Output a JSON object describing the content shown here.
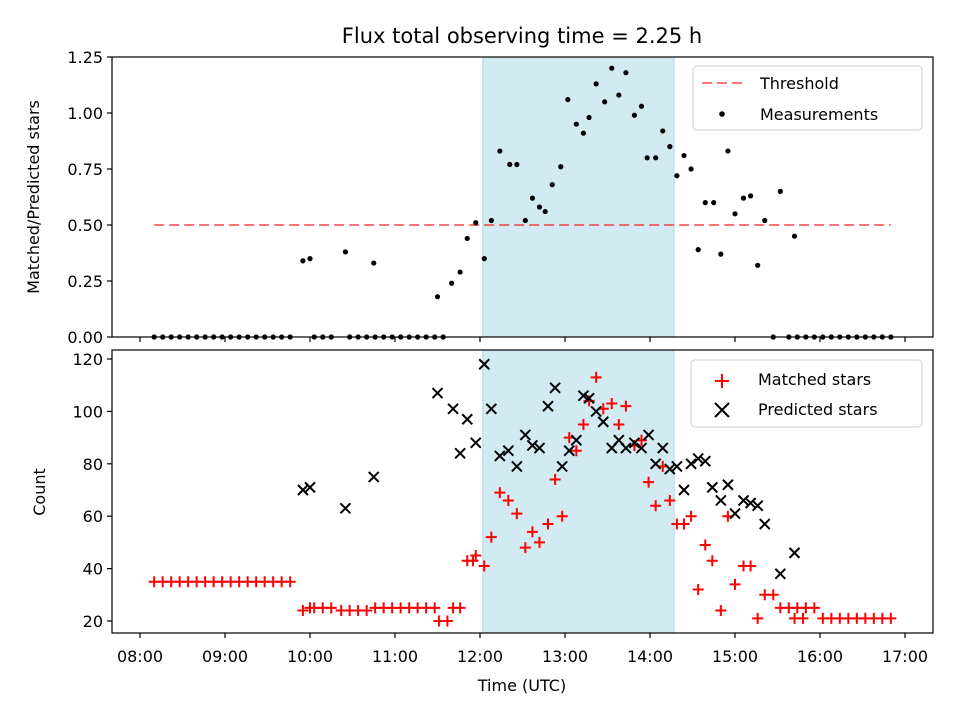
{
  "chart_data": [
    {
      "type": "scatter",
      "title": "Flux total observing time = 2.25 h",
      "xlabel": "",
      "ylabel": "Matched/Predicted stars",
      "xlim": [
        "08:00",
        "17:30"
      ],
      "ylim": [
        0,
        1.25
      ],
      "yticks": [
        0.0,
        0.25,
        0.5,
        0.75,
        1.0,
        1.25
      ],
      "ytick_labels": [
        "0.00",
        "0.25",
        "0.50",
        "0.75",
        "1.00",
        "1.25"
      ],
      "shaded_region": {
        "start": "12:02",
        "end": "14:17",
        "color": "#add8e6"
      },
      "grid": false,
      "legend_position": "top-right",
      "threshold": {
        "name": "Threshold",
        "value": 0.5,
        "x": [
          "08:10",
          "16:50"
        ],
        "color": "#ff0000",
        "style": "dashed"
      },
      "series": [
        {
          "name": "Measurements",
          "marker": "dot",
          "color": "#000000",
          "points": [
            [
              "08:10",
              0
            ],
            [
              "08:16",
              0
            ],
            [
              "08:22",
              0
            ],
            [
              "08:28",
              0
            ],
            [
              "08:34",
              0
            ],
            [
              "08:40",
              0
            ],
            [
              "08:46",
              0
            ],
            [
              "08:52",
              0
            ],
            [
              "08:58",
              0
            ],
            [
              "09:04",
              0
            ],
            [
              "09:10",
              0
            ],
            [
              "09:16",
              0
            ],
            [
              "09:22",
              0
            ],
            [
              "09:28",
              0
            ],
            [
              "09:34",
              0
            ],
            [
              "09:40",
              0
            ],
            [
              "09:46",
              0
            ],
            [
              "09:55",
              0.34
            ],
            [
              "10:00",
              0.35
            ],
            [
              "10:03",
              0
            ],
            [
              "10:09",
              0
            ],
            [
              "10:15",
              0
            ],
            [
              "10:25",
              0.38
            ],
            [
              "10:28",
              0
            ],
            [
              "10:34",
              0
            ],
            [
              "10:40",
              0
            ],
            [
              "10:46",
              0
            ],
            [
              "10:45",
              0.33
            ],
            [
              "10:52",
              0
            ],
            [
              "10:58",
              0
            ],
            [
              "11:04",
              0
            ],
            [
              "11:10",
              0
            ],
            [
              "11:16",
              0
            ],
            [
              "11:22",
              0
            ],
            [
              "11:28",
              0
            ],
            [
              "11:34",
              0
            ],
            [
              "11:30",
              0.18
            ],
            [
              "11:40",
              0.24
            ],
            [
              "11:46",
              0.29
            ],
            [
              "11:51",
              0.44
            ],
            [
              "11:57",
              0.51
            ],
            [
              "12:03",
              0.35
            ],
            [
              "12:08",
              0.52
            ],
            [
              "12:14",
              0.83
            ],
            [
              "12:21",
              0.77
            ],
            [
              "12:26",
              0.77
            ],
            [
              "12:32",
              0.52
            ],
            [
              "12:37",
              0.62
            ],
            [
              "12:42",
              0.58
            ],
            [
              "12:46",
              0.56
            ],
            [
              "12:51",
              0.68
            ],
            [
              "12:57",
              0.76
            ],
            [
              "13:02",
              1.06
            ],
            [
              "13:08",
              0.95
            ],
            [
              "13:13",
              0.91
            ],
            [
              "13:17",
              0.98
            ],
            [
              "13:22",
              1.13
            ],
            [
              "13:28",
              1.05
            ],
            [
              "13:33",
              1.2
            ],
            [
              "13:38",
              1.08
            ],
            [
              "13:43",
              1.18
            ],
            [
              "13:49",
              0.99
            ],
            [
              "13:54",
              1.03
            ],
            [
              "13:58",
              0.8
            ],
            [
              "14:04",
              0.8
            ],
            [
              "14:09",
              0.92
            ],
            [
              "14:14",
              0.85
            ],
            [
              "14:19",
              0.72
            ],
            [
              "14:24",
              0.81
            ],
            [
              "14:29",
              0.75
            ],
            [
              "14:34",
              0.39
            ],
            [
              "14:39",
              0.6
            ],
            [
              "14:45",
              0.6
            ],
            [
              "14:50",
              0.37
            ],
            [
              "14:55",
              0.83
            ],
            [
              "15:00",
              0.55
            ],
            [
              "15:06",
              0.62
            ],
            [
              "15:11",
              0.63
            ],
            [
              "15:16",
              0.32
            ],
            [
              "15:21",
              0.52
            ],
            [
              "15:27",
              0
            ],
            [
              "15:32",
              0.65
            ],
            [
              "15:38",
              0
            ],
            [
              "15:44",
              0
            ],
            [
              "15:50",
              0
            ],
            [
              "15:56",
              0
            ],
            [
              "16:02",
              0
            ],
            [
              "16:08",
              0
            ],
            [
              "16:14",
              0
            ],
            [
              "16:20",
              0
            ],
            [
              "16:26",
              0
            ],
            [
              "16:32",
              0
            ],
            [
              "16:38",
              0
            ],
            [
              "16:44",
              0
            ],
            [
              "16:50",
              0
            ],
            [
              "15:42",
              0.45
            ]
          ]
        }
      ]
    },
    {
      "type": "scatter",
      "title": "",
      "xlabel": "Time (UTC)",
      "ylabel": "Count",
      "xlim": [
        "08:00",
        "17:30"
      ],
      "ylim": [
        15,
        123
      ],
      "yticks": [
        20,
        40,
        60,
        80,
        100,
        120
      ],
      "xticks": [
        "08:00",
        "09:00",
        "10:00",
        "11:00",
        "12:00",
        "13:00",
        "14:00",
        "15:00",
        "16:00",
        "17:00"
      ],
      "shaded_region": {
        "start": "12:02",
        "end": "14:17",
        "color": "#add8e6"
      },
      "grid": false,
      "legend_position": "top-right",
      "series": [
        {
          "name": "Matched stars",
          "marker": "plus",
          "color": "#ff0000",
          "points": [
            [
              "08:10",
              35
            ],
            [
              "08:16",
              35
            ],
            [
              "08:22",
              35
            ],
            [
              "08:28",
              35
            ],
            [
              "08:34",
              35
            ],
            [
              "08:40",
              35
            ],
            [
              "08:46",
              35
            ],
            [
              "08:52",
              35
            ],
            [
              "08:58",
              35
            ],
            [
              "09:04",
              35
            ],
            [
              "09:10",
              35
            ],
            [
              "09:16",
              35
            ],
            [
              "09:22",
              35
            ],
            [
              "09:28",
              35
            ],
            [
              "09:34",
              35
            ],
            [
              "09:40",
              35
            ],
            [
              "09:46",
              35
            ],
            [
              "09:55",
              24
            ],
            [
              "10:00",
              25
            ],
            [
              "10:03",
              25
            ],
            [
              "10:09",
              25
            ],
            [
              "10:15",
              25
            ],
            [
              "10:22",
              24
            ],
            [
              "10:28",
              24
            ],
            [
              "10:34",
              24
            ],
            [
              "10:40",
              24
            ],
            [
              "10:46",
              25
            ],
            [
              "10:52",
              25
            ],
            [
              "10:58",
              25
            ],
            [
              "11:04",
              25
            ],
            [
              "11:10",
              25
            ],
            [
              "11:16",
              25
            ],
            [
              "11:22",
              25
            ],
            [
              "11:28",
              25
            ],
            [
              "11:31",
              20
            ],
            [
              "11:37",
              20
            ],
            [
              "11:41",
              25
            ],
            [
              "11:46",
              25
            ],
            [
              "11:51",
              43
            ],
            [
              "11:55",
              43
            ],
            [
              "11:57",
              45
            ],
            [
              "12:03",
              41
            ],
            [
              "12:08",
              52
            ],
            [
              "12:14",
              69
            ],
            [
              "12:20",
              66
            ],
            [
              "12:26",
              61
            ],
            [
              "12:32",
              48
            ],
            [
              "12:37",
              54
            ],
            [
              "12:42",
              50
            ],
            [
              "12:48",
              57
            ],
            [
              "12:53",
              74
            ],
            [
              "12:58",
              60
            ],
            [
              "13:03",
              90
            ],
            [
              "13:08",
              85
            ],
            [
              "13:13",
              95
            ],
            [
              "13:17",
              104
            ],
            [
              "13:22",
              113
            ],
            [
              "13:27",
              101
            ],
            [
              "13:33",
              103
            ],
            [
              "13:38",
              95
            ],
            [
              "13:43",
              102
            ],
            [
              "13:49",
              87
            ],
            [
              "13:54",
              89
            ],
            [
              "13:59",
              73
            ],
            [
              "14:04",
              64
            ],
            [
              "14:09",
              79
            ],
            [
              "14:14",
              66
            ],
            [
              "14:19",
              57
            ],
            [
              "14:24",
              57
            ],
            [
              "14:29",
              60
            ],
            [
              "14:34",
              32
            ],
            [
              "14:39",
              49
            ],
            [
              "14:44",
              43
            ],
            [
              "14:50",
              24
            ],
            [
              "14:55",
              60
            ],
            [
              "15:00",
              34
            ],
            [
              "15:06",
              41
            ],
            [
              "15:11",
              41
            ],
            [
              "15:16",
              21
            ],
            [
              "15:21",
              30
            ],
            [
              "15:27",
              30
            ],
            [
              "15:32",
              25
            ],
            [
              "15:38",
              25
            ],
            [
              "15:44",
              25
            ],
            [
              "15:50",
              25
            ],
            [
              "15:56",
              25
            ],
            [
              "16:02",
              21
            ],
            [
              "16:08",
              21
            ],
            [
              "16:14",
              21
            ],
            [
              "16:20",
              21
            ],
            [
              "16:26",
              21
            ],
            [
              "16:32",
              21
            ],
            [
              "16:38",
              21
            ],
            [
              "16:44",
              21
            ],
            [
              "16:50",
              21
            ],
            [
              "15:42",
              21
            ],
            [
              "15:48",
              21
            ]
          ]
        },
        {
          "name": "Predicted stars",
          "marker": "x",
          "color": "#000000",
          "points": [
            [
              "09:55",
              70
            ],
            [
              "10:00",
              71
            ],
            [
              "10:25",
              63
            ],
            [
              "10:45",
              75
            ],
            [
              "11:30",
              107
            ],
            [
              "11:41",
              101
            ],
            [
              "11:51",
              97
            ],
            [
              "11:57",
              88
            ],
            [
              "11:46",
              84
            ],
            [
              "12:03",
              118
            ],
            [
              "12:08",
              101
            ],
            [
              "12:14",
              83
            ],
            [
              "12:20",
              85
            ],
            [
              "12:26",
              79
            ],
            [
              "12:32",
              91
            ],
            [
              "12:37",
              87
            ],
            [
              "12:42",
              86
            ],
            [
              "12:48",
              102
            ],
            [
              "12:53",
              109
            ],
            [
              "12:58",
              79
            ],
            [
              "13:03",
              85
            ],
            [
              "13:08",
              89
            ],
            [
              "13:13",
              106
            ],
            [
              "13:17",
              105
            ],
            [
              "13:22",
              100
            ],
            [
              "13:27",
              96
            ],
            [
              "13:33",
              86
            ],
            [
              "13:38",
              89
            ],
            [
              "13:43",
              86
            ],
            [
              "13:49",
              88
            ],
            [
              "13:54",
              86
            ],
            [
              "13:59",
              91
            ],
            [
              "14:04",
              80
            ],
            [
              "14:09",
              86
            ],
            [
              "14:14",
              78
            ],
            [
              "14:19",
              79
            ],
            [
              "14:24",
              70
            ],
            [
              "14:29",
              80
            ],
            [
              "14:34",
              82
            ],
            [
              "14:39",
              81
            ],
            [
              "14:44",
              71
            ],
            [
              "14:50",
              66
            ],
            [
              "14:55",
              72
            ],
            [
              "15:00",
              61
            ],
            [
              "15:06",
              66
            ],
            [
              "15:11",
              65
            ],
            [
              "15:16",
              64
            ],
            [
              "15:21",
              57
            ],
            [
              "15:32",
              38
            ],
            [
              "15:42",
              46
            ]
          ]
        }
      ]
    }
  ]
}
